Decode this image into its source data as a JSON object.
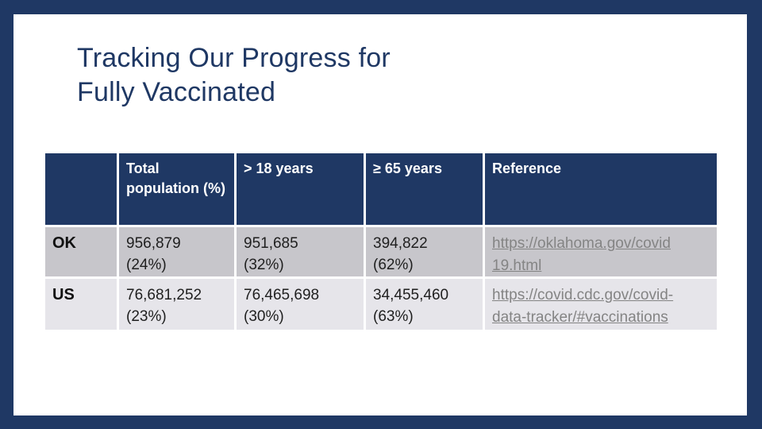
{
  "slide": {
    "title_lines": [
      "Tracking Our Progress for",
      "Fully Vaccinated"
    ]
  },
  "table": {
    "columns": [
      "",
      "Total population (%)",
      "> 18 years",
      "≥ 65 years",
      "Reference"
    ],
    "rows": [
      {
        "label": "OK",
        "total_population": {
          "value": "956,879",
          "pct": "(24%)"
        },
        "gt18": {
          "value": "951,685",
          "pct": "(32%)"
        },
        "gte65": {
          "value": "394,822",
          "pct": "(62%)"
        },
        "reference": {
          "line1": "https://oklahoma.gov/covid",
          "line2": "19.html"
        }
      },
      {
        "label": "US",
        "total_population": {
          "value": "76,681,252",
          "pct": "(23%)"
        },
        "gt18": {
          "value": "76,465,698",
          "pct": "(30%)"
        },
        "gte65": {
          "value": "34,455,460",
          "pct": "(63%)"
        },
        "reference": {
          "line1": "https://covid.cdc.gov/covid-",
          "line2": "data-tracker/#vaccinations"
        }
      }
    ]
  },
  "colors": {
    "accent_navy": "#1f3864",
    "row_ok_bg": "#c7c6cb",
    "row_us_bg": "#e6e5ea",
    "link_gray": "#848484"
  }
}
